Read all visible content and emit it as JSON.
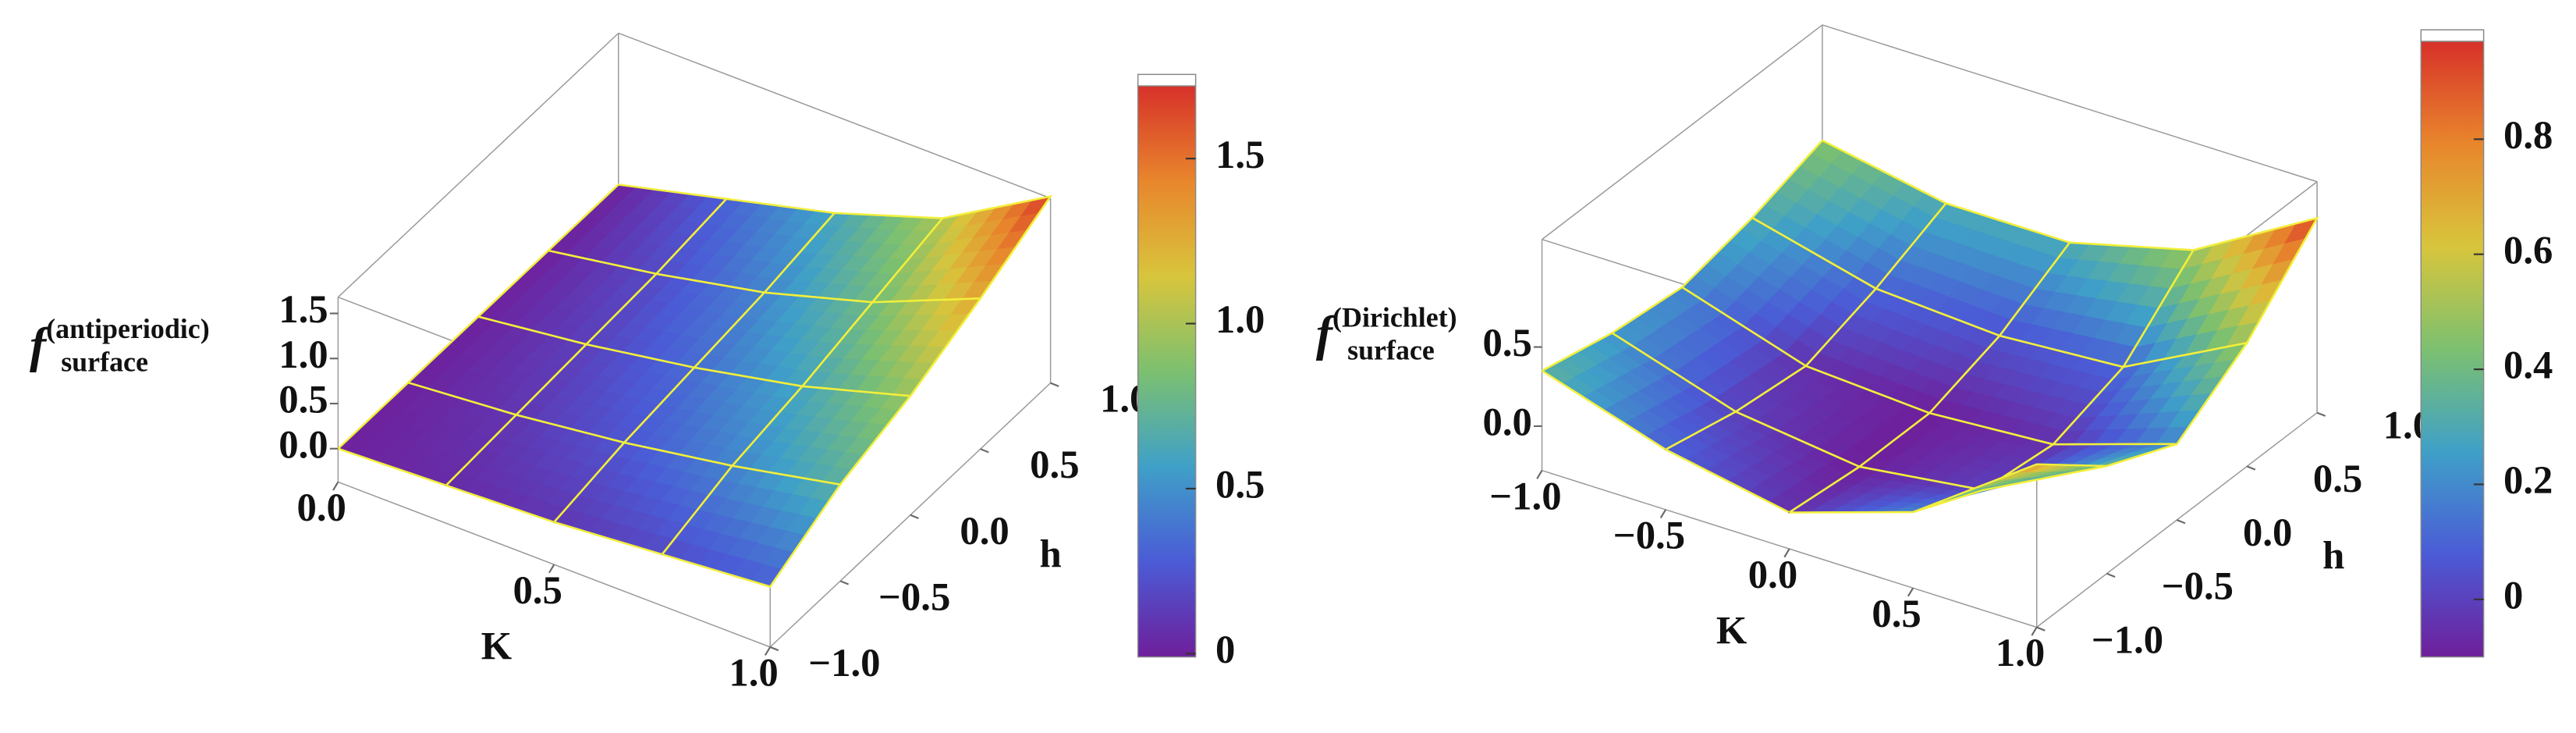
{
  "chart_data": [
    {
      "type": "surface",
      "zlabel": {
        "base": "f",
        "sup": "(antiperiodic)",
        "sub": "surface"
      },
      "xlabel": "K",
      "ylabel": "h",
      "x": [
        0,
        0.25,
        0.5,
        0.75,
        1
      ],
      "y": [
        -1,
        -0.5,
        0,
        0.5,
        1
      ],
      "z": [
        [
          0,
          0,
          0,
          0,
          0
        ],
        [
          0.05,
          0.1,
          0.15,
          0.2,
          0.3
        ],
        [
          0.1,
          0.25,
          0.35,
          0.45,
          0.6
        ],
        [
          0.2,
          0.45,
          0.6,
          0.8,
          1.0
        ],
        [
          0.3,
          0.7,
          0.95,
          1.3,
          1.7
        ]
      ],
      "xlim": [
        0,
        1
      ],
      "ylim": [
        -1,
        1
      ],
      "zlim": [
        -0.37,
        1.68
      ],
      "xticks": [
        {
          "value": 0,
          "label": "0.0"
        },
        0.5,
        {
          "value": 1,
          "label": "1.0"
        }
      ],
      "yticks": [
        {
          "value": -1,
          "label": "−1.0"
        },
        {
          "value": -0.5,
          "label": "−0.5"
        },
        {
          "value": 0,
          "label": "0.0"
        },
        0.5,
        {
          "value": 1,
          "label": "1.0"
        }
      ],
      "zticks": [
        {
          "value": 0,
          "label": "0.0"
        },
        0.5,
        {
          "value": 1,
          "label": "1.0"
        },
        1.5
      ],
      "clim": [
        -0.01,
        1.72
      ],
      "cticks": [
        0,
        0.5,
        {
          "value": 1,
          "label": "1.0"
        },
        1.5
      ],
      "colormap": [
        "#6f1f9b",
        "#4b5bd6",
        "#3fa0c8",
        "#7cc070",
        "#d8c53c",
        "#e8862c",
        "#d7312a"
      ],
      "mesh_color": "#f2ef3a"
    },
    {
      "type": "surface",
      "zlabel": {
        "base": "f",
        "sup": "(Dirichlet)",
        "sub": "surface"
      },
      "xlabel": "K",
      "ylabel": "h",
      "x": [
        -1,
        -0.5,
        0,
        0.5,
        1
      ],
      "y": [
        -1,
        -0.5,
        0,
        0.5,
        1
      ],
      "z": [
        [
          0.35,
          0.25,
          0.2,
          0.3,
          0.45
        ],
        [
          0.1,
          0.0,
          -0.05,
          0.1,
          0.3
        ],
        [
          -0.05,
          -0.1,
          -0.1,
          0.05,
          0.3
        ],
        [
          0.2,
          0.0,
          -0.05,
          0.1,
          0.5
        ],
        [
          0.75,
          0.4,
          0.2,
          0.5,
          0.95
        ]
      ],
      "xlim": [
        -1,
        1
      ],
      "ylim": [
        -1,
        1
      ],
      "zlim": [
        -0.28,
        1.18
      ],
      "xticks": [
        {
          "value": -1,
          "label": "−1.0"
        },
        {
          "value": -0.5,
          "label": "−0.5"
        },
        {
          "value": 0,
          "label": "0.0"
        },
        0.5,
        {
          "value": 1,
          "label": "1.0"
        }
      ],
      "yticks": [
        {
          "value": -1,
          "label": "−1.0"
        },
        {
          "value": -0.5,
          "label": "−0.5"
        },
        {
          "value": 0,
          "label": "0.0"
        },
        0.5,
        {
          "value": 1,
          "label": "1.0"
        }
      ],
      "zticks": [
        {
          "value": 0,
          "label": "0.0"
        },
        0.5
      ],
      "clim": [
        -0.1,
        0.97
      ],
      "cticks": [
        0,
        0.2,
        0.4,
        0.6,
        0.8
      ],
      "colormap": [
        "#6f1f9b",
        "#4b5bd6",
        "#3fa0c8",
        "#7cc070",
        "#d8c53c",
        "#e8862c",
        "#d7312a"
      ],
      "mesh_color": "#f2ef3a"
    }
  ]
}
